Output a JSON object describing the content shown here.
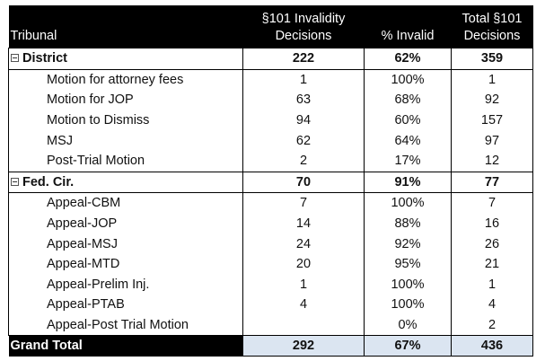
{
  "table": {
    "headers": {
      "tribunal": "Tribunal",
      "decisions_line1": "§101 Invalidity",
      "decisions_line2": "Decisions",
      "pct_invalid": "% Invalid",
      "total_line1": "Total §101",
      "total_line2": "Decisions"
    },
    "groups": [
      {
        "name": "District",
        "decisions": "222",
        "pct": "62%",
        "total": "359",
        "rows": [
          {
            "name": "Motion for attorney fees",
            "decisions": "1",
            "pct": "100%",
            "total": "1"
          },
          {
            "name": "Motion for JOP",
            "decisions": "63",
            "pct": "68%",
            "total": "92"
          },
          {
            "name": "Motion to Dismiss",
            "decisions": "94",
            "pct": "60%",
            "total": "157"
          },
          {
            "name": "MSJ",
            "decisions": "62",
            "pct": "64%",
            "total": "97"
          },
          {
            "name": "Post-Trial Motion",
            "decisions": "2",
            "pct": "17%",
            "total": "12"
          }
        ]
      },
      {
        "name": "Fed. Cir.",
        "decisions": "70",
        "pct": "91%",
        "total": "77",
        "rows": [
          {
            "name": "Appeal-CBM",
            "decisions": "7",
            "pct": "100%",
            "total": "7"
          },
          {
            "name": "Appeal-JOP",
            "decisions": "14",
            "pct": "88%",
            "total": "16"
          },
          {
            "name": "Appeal-MSJ",
            "decisions": "24",
            "pct": "92%",
            "total": "26"
          },
          {
            "name": "Appeal-MTD",
            "decisions": "20",
            "pct": "95%",
            "total": "21"
          },
          {
            "name": "Appeal-Prelim Inj.",
            "decisions": "1",
            "pct": "100%",
            "total": "1"
          },
          {
            "name": "Appeal-PTAB",
            "decisions": "4",
            "pct": "100%",
            "total": "4"
          },
          {
            "name": "Appeal-Post Trial Motion",
            "decisions": "",
            "pct": "0%",
            "total": "2"
          }
        ]
      }
    ],
    "grand_total": {
      "label": "Grand Total",
      "decisions": "292",
      "pct": "67%",
      "total": "436"
    }
  },
  "colors": {
    "header_bg": "#000000",
    "grand_total_bg": "#dbe5f1"
  }
}
